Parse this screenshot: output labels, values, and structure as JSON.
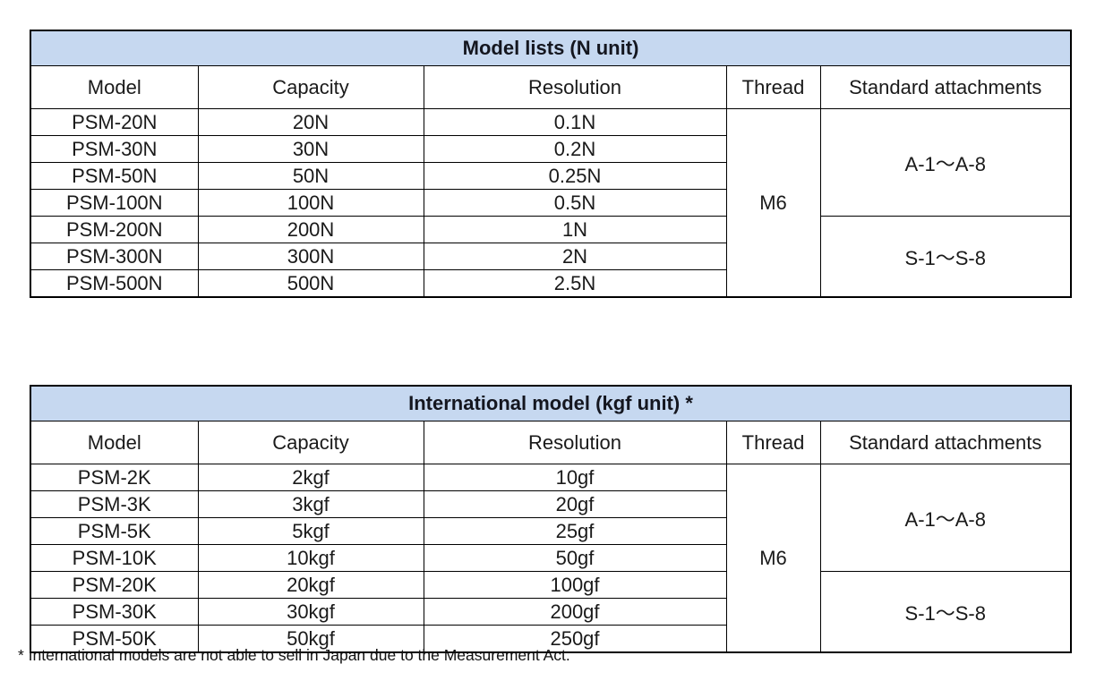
{
  "colors": {
    "band_bg": "#c6d8f0",
    "border": "#000000",
    "text": "#1a1a1a"
  },
  "tables": [
    {
      "title": "Model lists (N unit)",
      "columns": [
        "Model",
        "Capacity",
        "Resolution",
        "Thread",
        "Standard attachments"
      ],
      "thread": "M6",
      "attachment_groups": [
        {
          "label": "A-1～A-8",
          "rows": 4
        },
        {
          "label": "S-1～S-8",
          "rows": 3
        }
      ],
      "rows": [
        {
          "model": "PSM-20N",
          "capacity": "20N",
          "resolution": "0.1N"
        },
        {
          "model": "PSM-30N",
          "capacity": "30N",
          "resolution": "0.2N"
        },
        {
          "model": "PSM-50N",
          "capacity": "50N",
          "resolution": "0.25N"
        },
        {
          "model": "PSM-100N",
          "capacity": "100N",
          "resolution": "0.5N"
        },
        {
          "model": "PSM-200N",
          "capacity": "200N",
          "resolution": "1N"
        },
        {
          "model": "PSM-300N",
          "capacity": "300N",
          "resolution": "2N"
        },
        {
          "model": "PSM-500N",
          "capacity": "500N",
          "resolution": "2.5N"
        }
      ]
    },
    {
      "title": "International model (kgf unit) *",
      "columns": [
        "Model",
        "Capacity",
        "Resolution",
        "Thread",
        "Standard attachments"
      ],
      "thread": "M6",
      "attachment_groups": [
        {
          "label": "A-1～A-8",
          "rows": 4
        },
        {
          "label": "S-1～S-8",
          "rows": 3
        }
      ],
      "rows": [
        {
          "model": "PSM-2K",
          "capacity": "2kgf",
          "resolution": "10gf"
        },
        {
          "model": "PSM-3K",
          "capacity": "3kgf",
          "resolution": "20gf"
        },
        {
          "model": "PSM-5K",
          "capacity": "5kgf",
          "resolution": "25gf"
        },
        {
          "model": "PSM-10K",
          "capacity": "10kgf",
          "resolution": "50gf"
        },
        {
          "model": "PSM-20K",
          "capacity": "20kgf",
          "resolution": "100gf"
        },
        {
          "model": "PSM-30K",
          "capacity": "30kgf",
          "resolution": "200gf"
        },
        {
          "model": "PSM-50K",
          "capacity": "50kgf",
          "resolution": "250gf"
        }
      ]
    }
  ],
  "footnote": "* International models are not able to sell in Japan due to the Measurement Act."
}
